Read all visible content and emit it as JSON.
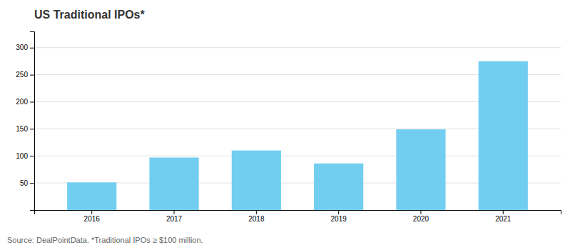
{
  "chart_data": {
    "type": "bar",
    "title": "US Traditional IPOs*",
    "categories": [
      "2016",
      "2017",
      "2018",
      "2019",
      "2020",
      "2021"
    ],
    "values": [
      51,
      97,
      110,
      86,
      149,
      275
    ],
    "color": "#72CEF0",
    "ylim": [
      0,
      330
    ],
    "yticks": [
      50,
      100,
      150,
      200,
      250,
      300
    ],
    "grid": true,
    "footnote": "Source: DealPointData. *Traditional IPOs ≥ $100 million."
  }
}
